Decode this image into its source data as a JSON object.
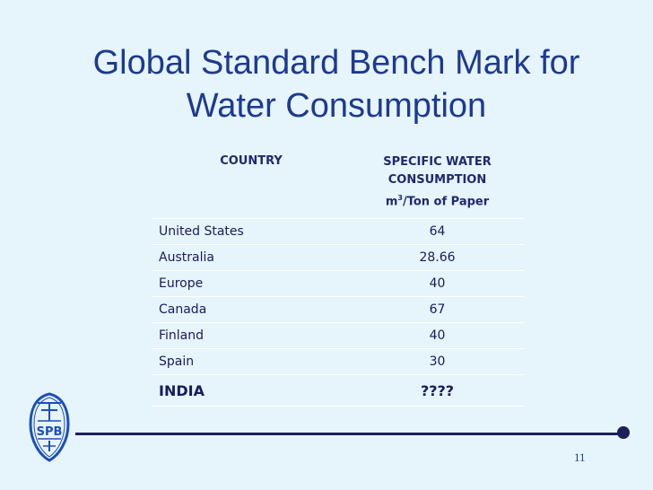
{
  "slide": {
    "title_line1": "Global Standard Bench Mark for",
    "title_line2": "Water Consumption",
    "page_number": "11"
  },
  "table": {
    "header": {
      "country": "COUNTRY",
      "consumption_line1": "SPECIFIC WATER",
      "consumption_line2": "CONSUMPTION",
      "consumption_unit_m": "m",
      "consumption_unit_sup": "3",
      "consumption_unit_rest": "/Ton of Paper"
    },
    "rows": [
      {
        "country": "United States",
        "value": "64"
      },
      {
        "country": "Australia",
        "value": "28.66"
      },
      {
        "country": "Europe",
        "value": "40"
      },
      {
        "country": "Canada",
        "value": "67"
      },
      {
        "country": "Finland",
        "value": "40"
      },
      {
        "country": "Spain",
        "value": "30"
      },
      {
        "country": "INDIA",
        "value": "????"
      }
    ]
  },
  "logo": {
    "text": "SPB"
  },
  "colors": {
    "background": "#e6f4fb",
    "title": "#1d3a8f",
    "rule": "#1d1f5a"
  }
}
